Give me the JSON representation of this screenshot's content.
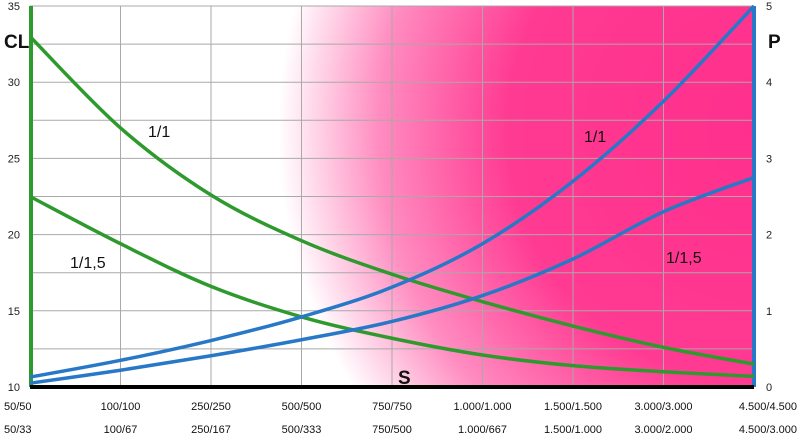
{
  "chart_data": {
    "type": "line",
    "x_categories_row1": [
      "50/50",
      "100/100",
      "250/250",
      "500/500",
      "750/750",
      "1.000/1.000",
      "1.500/1.500",
      "3.000/3.000",
      "4.500/4.500"
    ],
    "x_categories_row2": [
      "50/33",
      "100/67",
      "250/167",
      "500/333",
      "750/500",
      "1.000/667",
      "1.500/1.000",
      "3.000/2.000",
      "4.500/3.000"
    ],
    "xlabel": "S",
    "y_left": {
      "label": "CL",
      "range": [
        10,
        35
      ],
      "ticks": [
        "10",
        "15",
        "20",
        "25",
        "30",
        "35"
      ]
    },
    "y_right": {
      "label": "P",
      "range": [
        0,
        5
      ],
      "ticks": [
        "0",
        "1",
        "2",
        "3",
        "4",
        "5"
      ]
    },
    "grid": true,
    "background": "white-to-magenta gradient increasing to the right",
    "series": [
      {
        "name": "1/1",
        "axis": "left",
        "color": "#2e9a2e",
        "values": [
          33.0,
          27.0,
          22.6,
          19.6,
          17.4,
          15.6,
          14.0,
          12.6,
          11.5
        ]
      },
      {
        "name": "1/1,5",
        "axis": "left",
        "color": "#2e9a2e",
        "values": [
          22.5,
          19.4,
          16.6,
          14.6,
          13.2,
          12.1,
          11.4,
          11.0,
          10.7
        ]
      },
      {
        "name": "1/1",
        "axis": "right",
        "color": "#2878c8",
        "values": [
          0.13,
          0.35,
          0.61,
          0.92,
          1.31,
          1.88,
          2.7,
          3.75,
          5.0
        ]
      },
      {
        "name": "1/1,5",
        "axis": "right",
        "color": "#2878c8",
        "values": [
          0.05,
          0.22,
          0.41,
          0.62,
          0.86,
          1.2,
          1.68,
          2.3,
          2.75
        ]
      }
    ],
    "annotations": [
      "1/1",
      "1/1,5",
      "1/1",
      "1/1,5"
    ]
  }
}
